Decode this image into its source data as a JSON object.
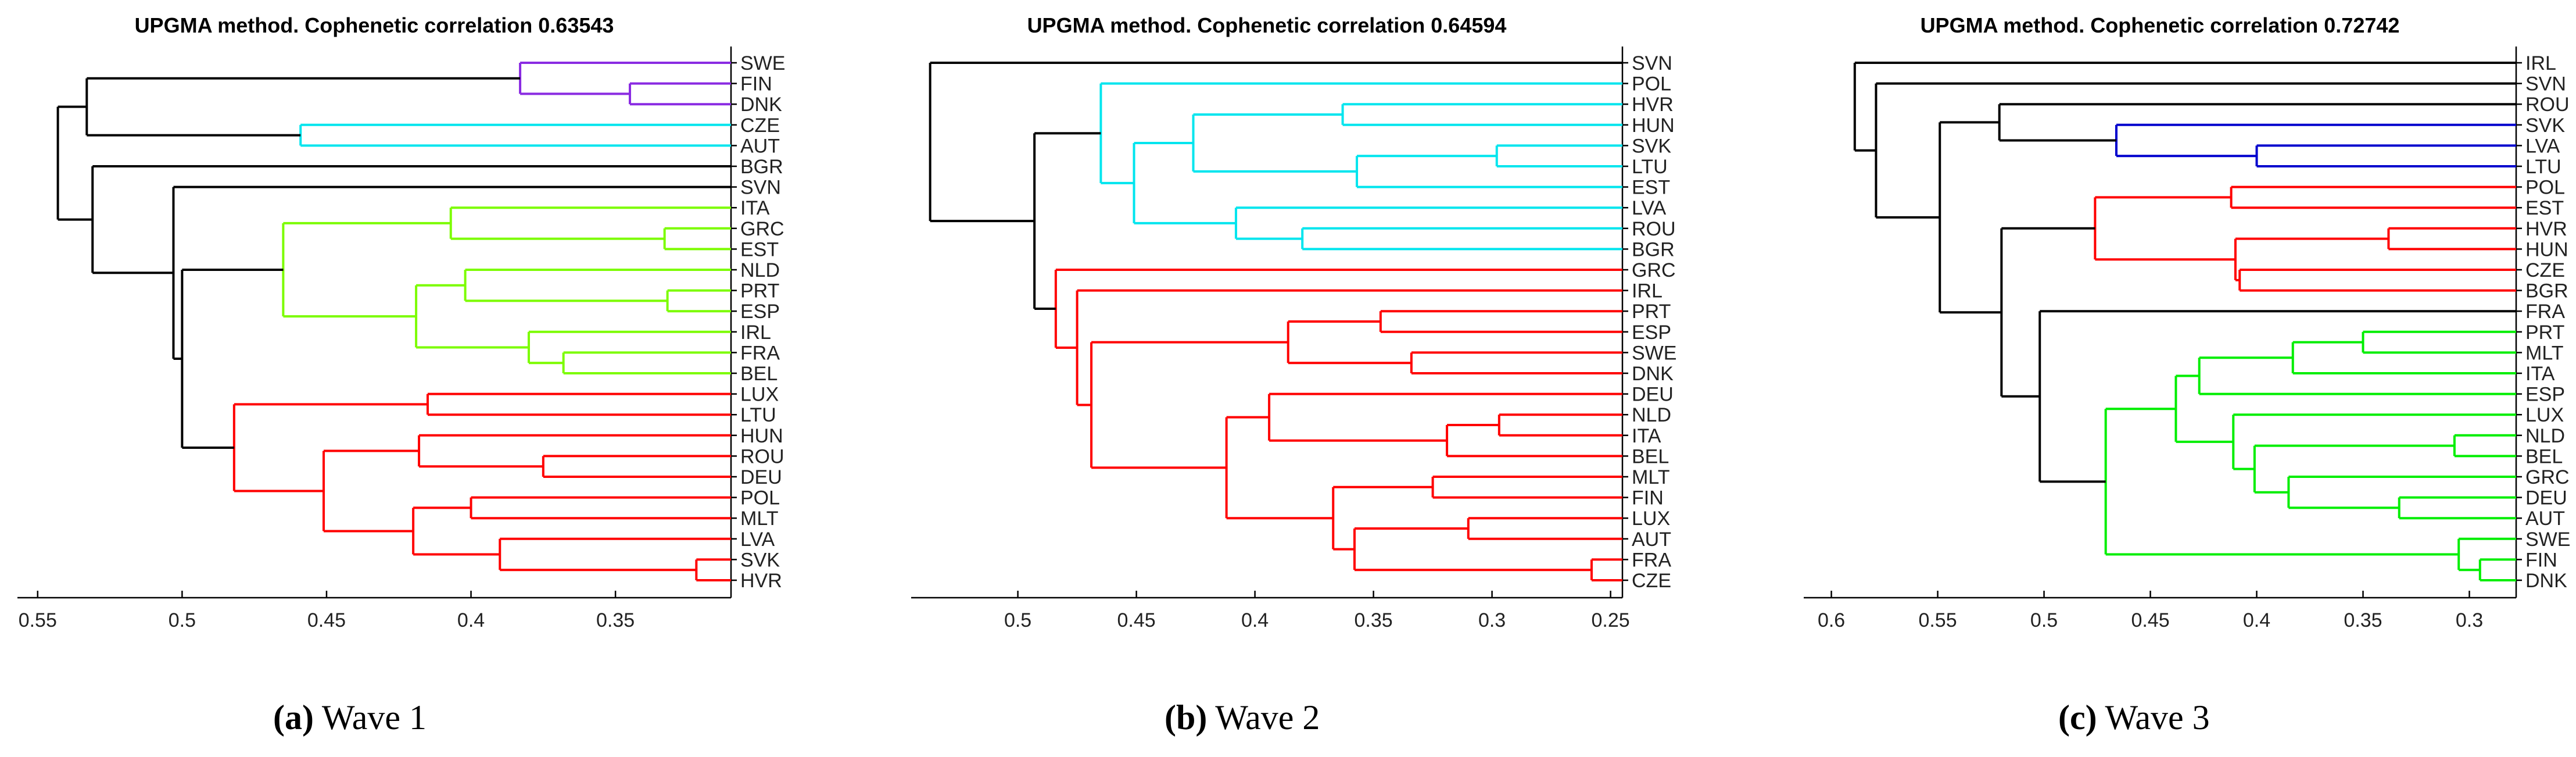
{
  "chart_data": [
    {
      "type": "dendrogram",
      "title": "UPGMA method. Cophenetic correlation 0.63543",
      "caption_letter": "(a)",
      "caption_text": "Wave 1",
      "xlim": [
        0.557,
        0.31
      ],
      "ticks": [
        0.55,
        0.5,
        0.45,
        0.4,
        0.35
      ],
      "tick_labels": [
        "0.55",
        "0.5",
        "0.45",
        "0.4",
        "0.35"
      ],
      "leaves": [
        "SWE",
        "FIN",
        "DNK",
        "CZE",
        "AUT",
        "BGR",
        "SVN",
        "ITA",
        "GRC",
        "EST",
        "NLD",
        "PRT",
        "ESP",
        "IRL",
        "FRA",
        "BEL",
        "LUX",
        "LTU",
        "HUN",
        "ROU",
        "DEU",
        "POL",
        "MLT",
        "LVA",
        "SVK",
        "HVR"
      ],
      "colors": {
        "k": "#000000",
        "p": "#8a2be2",
        "c": "#00e5ee",
        "g": "#7cfc00",
        "r": "#ff0000"
      },
      "tree": [
        0.543,
        "k",
        [
          0.533,
          "k",
          [
            0.383,
            "p",
            "SWE",
            [
              0.345,
              "p",
              "FIN",
              "DNK"
            ]
          ],
          [
            0.459,
            "c",
            "CZE",
            "AUT"
          ]
        ],
        [
          0.531,
          "k",
          "BGR",
          [
            0.503,
            "k",
            "SVN",
            [
              0.5,
              "k",
              [
                0.465,
                "g",
                [
                  0.407,
                  "g",
                  "ITA",
                  [
                    0.333,
                    "g",
                    "GRC",
                    "EST"
                  ]
                ],
                [
                  0.419,
                  "g",
                  [
                    0.402,
                    "g",
                    "NLD",
                    [
                      0.332,
                      "g",
                      "PRT",
                      "ESP"
                    ]
                  ],
                  [
                    0.38,
                    "g",
                    "IRL",
                    [
                      0.368,
                      "g",
                      "FRA",
                      "BEL"
                    ]
                  ]
                ]
              ],
              [
                0.482,
                "r",
                [
                  0.415,
                  "r",
                  "LUX",
                  "LTU"
                ],
                [
                  0.451,
                  "r",
                  [
                    0.418,
                    "r",
                    "HUN",
                    [
                      0.375,
                      "r",
                      "ROU",
                      "DEU"
                    ]
                  ],
                  [
                    0.42,
                    "r",
                    [
                      0.4,
                      "r",
                      "POL",
                      "MLT"
                    ],
                    [
                      0.39,
                      "r",
                      "LVA",
                      [
                        0.322,
                        "r",
                        "SVK",
                        "HVR"
                      ]
                    ]
                  ]
                ]
              ]
            ]
          ]
        ]
      ]
    },
    {
      "type": "dendrogram",
      "title": "UPGMA method. Cophenetic correlation 0.64594",
      "caption_letter": "(b)",
      "caption_text": "Wave 2",
      "xlim": [
        0.545,
        0.245
      ],
      "ticks": [
        0.5,
        0.45,
        0.4,
        0.35,
        0.3,
        0.25
      ],
      "tick_labels": [
        "0.5",
        "0.45",
        "0.4",
        "0.35",
        "0.3",
        "0.25"
      ],
      "leaves": [
        "SVN",
        "POL",
        "HVR",
        "HUN",
        "SVK",
        "LTU",
        "EST",
        "LVA",
        "ROU",
        "BGR",
        "GRC",
        "IRL",
        "PRT",
        "ESP",
        "SWE",
        "DNK",
        "DEU",
        "NLD",
        "ITA",
        "BEL",
        "MLT",
        "FIN",
        "LUX",
        "AUT",
        "FRA",
        "CZE"
      ],
      "colors": {
        "k": "#000000",
        "c": "#00e5ee",
        "r": "#ff0000"
      },
      "tree": [
        0.537,
        "k",
        "SVN",
        [
          0.493,
          "k",
          [
            0.465,
            "c",
            "POL",
            [
              0.451,
              "c",
              [
                0.426,
                "c",
                [
                  0.363,
                  "c",
                  "HVR",
                  "HUN"
                ],
                [
                  0.357,
                  "c",
                  "EST",
                  [
                    0.298,
                    "c",
                    "SVK",
                    "LTU"
                  ]
                ]
              ],
              [
                0.408,
                "c",
                "LVA",
                [
                  0.38,
                  "c",
                  "ROU",
                  "BGR"
                ]
              ]
            ]
          ],
          [
            0.484,
            "r",
            "GRC",
            [
              0.475,
              "r",
              "IRL",
              [
                0.469,
                "r",
                [
                  0.386,
                  "r",
                  [
                    0.347,
                    "r",
                    "PRT",
                    "ESP"
                  ],
                  [
                    0.334,
                    "r",
                    "SWE",
                    "DNK"
                  ]
                ],
                [
                  0.412,
                  "r",
                  [
                    0.394,
                    "r",
                    "DEU",
                    [
                      0.319,
                      "r",
                      "BEL",
                      [
                        0.297,
                        "r",
                        "NLD",
                        "ITA"
                      ]
                    ]
                  ],
                  [
                    0.367,
                    "r",
                    [
                      0.325,
                      "r",
                      "MLT",
                      "FIN"
                    ],
                    [
                      0.358,
                      "r",
                      [
                        0.31,
                        "r",
                        "LUX",
                        "AUT"
                      ],
                      [
                        0.258,
                        "r",
                        "FRA",
                        "CZE"
                      ]
                    ]
                  ]
                ]
              ]
            ]
          ]
        ]
      ]
    },
    {
      "type": "dendrogram",
      "title": "UPGMA method. Cophenetic correlation 0.72742",
      "caption_letter": "(c)",
      "caption_text": "Wave 3",
      "xlim": [
        0.613,
        0.278
      ],
      "ticks": [
        0.6,
        0.55,
        0.5,
        0.45,
        0.4,
        0.35,
        0.3
      ],
      "tick_labels": [
        "0.6",
        "0.55",
        "0.5",
        "0.45",
        "0.4",
        "0.35",
        "0.3"
      ],
      "leaves": [
        "IRL",
        "SVN",
        "ROU",
        "SVK",
        "LVA",
        "LTU",
        "POL",
        "EST",
        "HVR",
        "HUN",
        "CZE",
        "BGR",
        "FRA",
        "PRT",
        "MLT",
        "ITA",
        "ESP",
        "LUX",
        "NLD",
        "BEL",
        "GRC",
        "DEU",
        "AUT",
        "SWE",
        "FIN",
        "DNK"
      ],
      "colors": {
        "k": "#000000",
        "b": "#0000cd",
        "r": "#ff0000",
        "g": "#00ee00"
      },
      "tree": [
        0.589,
        "k",
        "IRL",
        [
          0.579,
          "k",
          "SVN",
          [
            0.549,
            "k",
            [
              0.521,
              "k",
              "ROU",
              [
                0.466,
                "b",
                "SVK",
                [
                  0.4,
                  "b",
                  "LVA",
                  "LTU"
                ]
              ]
            ],
            [
              0.52,
              "k",
              [
                0.476,
                "r",
                [
                  0.412,
                  "r",
                  "POL",
                  "EST"
                ],
                [
                  0.41,
                  "r",
                  [
                    0.338,
                    "r",
                    "HVR",
                    "HUN"
                  ],
                  [
                    0.408,
                    "r",
                    "CZE",
                    "BGR"
                  ]
                ]
              ],
              [
                0.502,
                "k",
                "FRA",
                [
                  0.471,
                  "g",
                  [
                    0.438,
                    "g",
                    [
                      0.427,
                      "g",
                      [
                        0.383,
                        "g",
                        [
                          0.35,
                          "g",
                          "PRT",
                          "MLT"
                        ],
                        "ITA"
                      ],
                      "ESP"
                    ],
                    [
                      0.411,
                      "g",
                      "LUX",
                      [
                        0.401,
                        "g",
                        [
                          0.307,
                          "g",
                          "NLD",
                          "BEL"
                        ],
                        [
                          0.385,
                          "g",
                          "GRC",
                          [
                            0.333,
                            "g",
                            "DEU",
                            "AUT"
                          ]
                        ]
                      ]
                    ]
                  ],
                  [
                    0.305,
                    "g",
                    "SWE",
                    [
                      0.295,
                      "g",
                      "FIN",
                      "DNK"
                    ]
                  ]
                ]
              ]
            ]
          ]
        ]
      ]
    }
  ]
}
